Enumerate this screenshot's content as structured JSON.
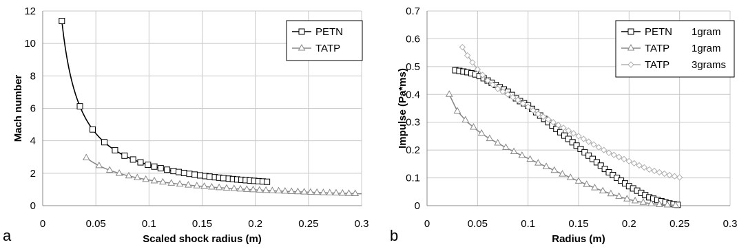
{
  "chart_data": [
    {
      "type": "line",
      "panel_label": "a",
      "xlabel": "Scaled shock radius (m)",
      "ylabel": "Mach number",
      "xlim": [
        0,
        0.3
      ],
      "ylim": [
        0,
        12
      ],
      "xticks": [
        0,
        0.05,
        0.1,
        0.15,
        0.2,
        0.25,
        0.3
      ],
      "yticks": [
        0,
        2,
        4,
        6,
        8,
        10,
        12
      ],
      "xtick_labels": [
        "0",
        "0.05",
        "0.1",
        "0.15",
        "0.2",
        "0.25",
        "0.3"
      ],
      "ytick_labels": [
        "0",
        "2",
        "4",
        "6",
        "8",
        "10",
        "12"
      ],
      "grid": true,
      "legend_position": "top-right",
      "series": [
        {
          "name": "PETN",
          "color": "#000000",
          "marker": "square",
          "curve": {
            "x0": 0.018,
            "x1": 0.212,
            "a": 0.195,
            "p": 1,
            "c": 0.55
          },
          "marker_x": [
            0.018,
            0.035,
            0.047,
            0.058,
            0.068,
            0.077,
            0.085,
            0.092,
            0.099,
            0.105,
            0.111,
            0.117,
            0.123,
            0.128,
            0.133,
            0.138,
            0.143,
            0.148,
            0.153,
            0.157,
            0.162,
            0.166,
            0.17,
            0.175,
            0.179,
            0.183,
            0.187,
            0.191,
            0.195,
            0.199,
            0.203,
            0.207,
            0.211
          ]
        },
        {
          "name": "TATP",
          "color": "#888888",
          "marker": "triangle",
          "curve": {
            "x0": 0.041,
            "x1": 0.3,
            "a": 0.3155,
            "p": 0.7,
            "c": 0
          },
          "marker_x": [
            0.041,
            0.053,
            0.063,
            0.072,
            0.081,
            0.089,
            0.097,
            0.105,
            0.113,
            0.121,
            0.129,
            0.137,
            0.145,
            0.152,
            0.159,
            0.166,
            0.173,
            0.18,
            0.186,
            0.192,
            0.198,
            0.204,
            0.21,
            0.216,
            0.222,
            0.228,
            0.234,
            0.24,
            0.246,
            0.252,
            0.258,
            0.264,
            0.27,
            0.276,
            0.282,
            0.288,
            0.294
          ]
        }
      ]
    },
    {
      "type": "line",
      "panel_label": "b",
      "xlabel": "Radius (m)",
      "ylabel": "Impulse (Pa*ms)",
      "xlim": [
        0,
        0.3
      ],
      "ylim": [
        0,
        0.7
      ],
      "xticks": [
        0,
        0.05,
        0.1,
        0.15,
        0.2,
        0.25,
        0.3
      ],
      "yticks": [
        0,
        0.1,
        0.2,
        0.3,
        0.4,
        0.5,
        0.6,
        0.7
      ],
      "xtick_labels": [
        "0",
        "0.05",
        "0.1",
        "0.15",
        "0.2",
        "0.25",
        "0.3"
      ],
      "ytick_labels": [
        "0",
        "0.1",
        "0.2",
        "0.3",
        "0.4",
        "0.5",
        "0.6",
        "0.7"
      ],
      "grid": true,
      "legend_position": "top-right",
      "series": [
        {
          "name": "PETN",
          "name_suffix": "1gram",
          "color": "#000000",
          "marker": "square",
          "points": [
            [
              0.028,
              0.487
            ],
            [
              0.04,
              0.48
            ],
            [
              0.05,
              0.47
            ],
            [
              0.06,
              0.45
            ],
            [
              0.07,
              0.43
            ],
            [
              0.08,
              0.41
            ],
            [
              0.09,
              0.38
            ],
            [
              0.1,
              0.36
            ],
            [
              0.11,
              0.33
            ],
            [
              0.12,
              0.3
            ],
            [
              0.13,
              0.27
            ],
            [
              0.14,
              0.24
            ],
            [
              0.15,
              0.21
            ],
            [
              0.16,
              0.18
            ],
            [
              0.17,
              0.15
            ],
            [
              0.18,
              0.12
            ],
            [
              0.19,
              0.095
            ],
            [
              0.2,
              0.07
            ],
            [
              0.21,
              0.05
            ],
            [
              0.22,
              0.03
            ],
            [
              0.23,
              0.018
            ],
            [
              0.24,
              0.008
            ],
            [
              0.248,
              0.003
            ]
          ],
          "marker_step": 0.004
        },
        {
          "name": "TATP",
          "name_suffix": "1gram",
          "color": "#888888",
          "marker": "triangle",
          "points": [
            [
              0.022,
              0.4
            ],
            [
              0.03,
              0.34
            ],
            [
              0.04,
              0.3
            ],
            [
              0.05,
              0.27
            ],
            [
              0.06,
              0.245
            ],
            [
              0.07,
              0.225
            ],
            [
              0.08,
              0.205
            ],
            [
              0.09,
              0.187
            ],
            [
              0.1,
              0.17
            ],
            [
              0.11,
              0.153
            ],
            [
              0.12,
              0.137
            ],
            [
              0.13,
              0.12
            ],
            [
              0.14,
              0.104
            ],
            [
              0.15,
              0.088
            ],
            [
              0.16,
              0.073
            ],
            [
              0.17,
              0.058
            ],
            [
              0.18,
              0.045
            ],
            [
              0.19,
              0.033
            ],
            [
              0.2,
              0.022
            ],
            [
              0.21,
              0.014
            ],
            [
              0.22,
              0.008
            ],
            [
              0.23,
              0.004
            ],
            [
              0.24,
              0.002
            ],
            [
              0.248,
              0.001
            ]
          ],
          "marker_step": 0.008
        },
        {
          "name": "TATP",
          "name_suffix": "3grams",
          "color": "#b0b0b0",
          "marker": "diamond",
          "points": [
            [
              0.035,
              0.57
            ],
            [
              0.04,
              0.54
            ],
            [
              0.05,
              0.49
            ],
            [
              0.06,
              0.45
            ],
            [
              0.07,
              0.42
            ],
            [
              0.08,
              0.4
            ],
            [
              0.09,
              0.38
            ],
            [
              0.1,
              0.355
            ],
            [
              0.11,
              0.33
            ],
            [
              0.12,
              0.31
            ],
            [
              0.13,
              0.29
            ],
            [
              0.14,
              0.27
            ],
            [
              0.15,
              0.25
            ],
            [
              0.16,
              0.23
            ],
            [
              0.17,
              0.21
            ],
            [
              0.18,
              0.19
            ],
            [
              0.19,
              0.175
            ],
            [
              0.2,
              0.16
            ],
            [
              0.21,
              0.145
            ],
            [
              0.22,
              0.13
            ],
            [
              0.23,
              0.12
            ],
            [
              0.24,
              0.11
            ],
            [
              0.252,
              0.1
            ]
          ],
          "marker_step": 0.005
        }
      ]
    }
  ]
}
